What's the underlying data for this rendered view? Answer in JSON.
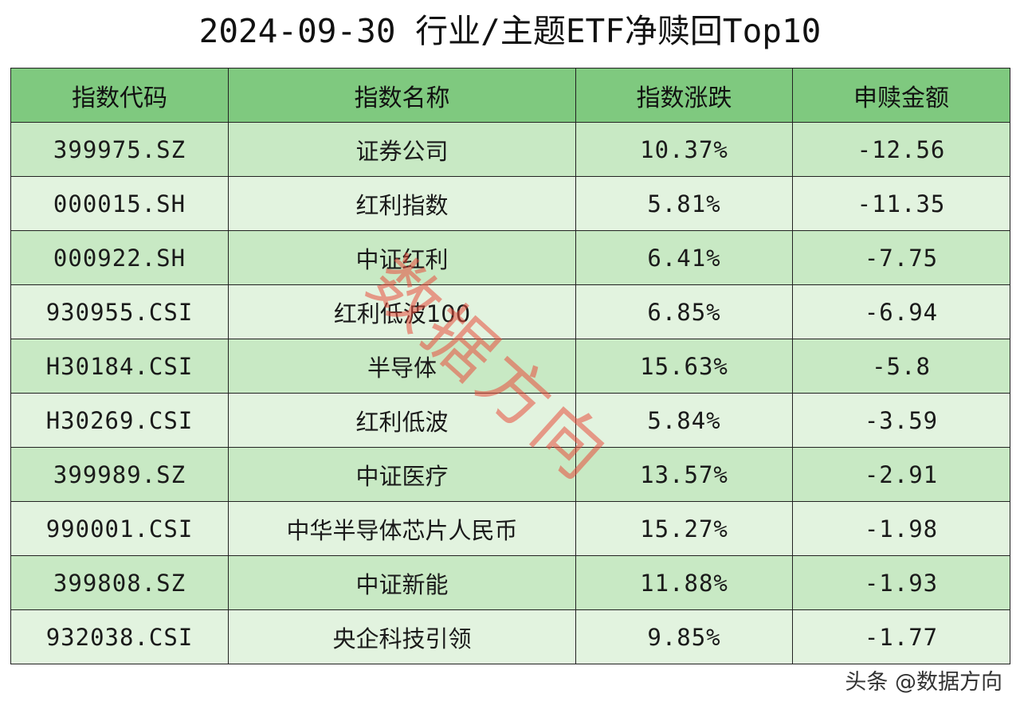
{
  "title": "2024-09-30 行业/主题ETF净赎回Top10",
  "table": {
    "headers": [
      "指数代码",
      "指数名称",
      "指数涨跌",
      "申赎金额"
    ],
    "rows": [
      {
        "code": "399975.SZ",
        "name": "证券公司",
        "change": "10.37%",
        "amount": "-12.56"
      },
      {
        "code": "000015.SH",
        "name": "红利指数",
        "change": "5.81%",
        "amount": "-11.35"
      },
      {
        "code": "000922.SH",
        "name": "中证红利",
        "change": "6.41%",
        "amount": "-7.75"
      },
      {
        "code": "930955.CSI",
        "name": "红利低波100",
        "change": "6.85%",
        "amount": "-6.94"
      },
      {
        "code": "H30184.CSI",
        "name": "半导体",
        "change": "15.63%",
        "amount": "-5.8"
      },
      {
        "code": "H30269.CSI",
        "name": "红利低波",
        "change": "5.84%",
        "amount": "-3.59"
      },
      {
        "code": "399989.SZ",
        "name": "中证医疗",
        "change": "13.57%",
        "amount": "-2.91"
      },
      {
        "code": "990001.CSI",
        "name": "中华半导体芯片人民币",
        "change": "15.27%",
        "amount": "-1.98"
      },
      {
        "code": "399808.SZ",
        "name": "中证新能",
        "change": "11.88%",
        "amount": "-1.93"
      },
      {
        "code": "932038.CSI",
        "name": "央企科技引领",
        "change": "9.85%",
        "amount": "-1.77"
      }
    ]
  },
  "watermark": "数据方向",
  "credit": "头条 @数据方向",
  "colors": {
    "header_bg": "#7fc97f",
    "row_odd_bg": "#c8e9c4",
    "row_even_bg": "#e2f3df",
    "watermark": "#e74c3c"
  }
}
